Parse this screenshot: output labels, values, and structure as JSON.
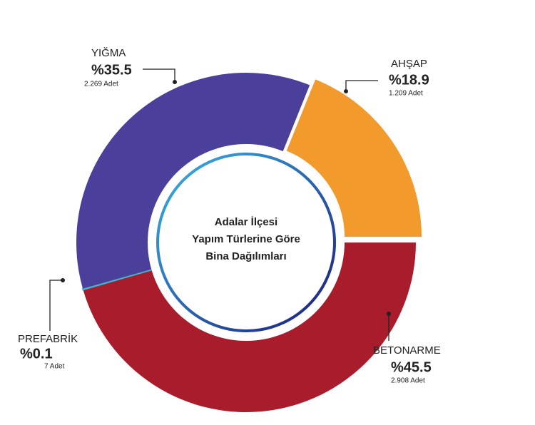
{
  "chart_data": {
    "type": "donut",
    "title": [
      "Adalar İlçesi",
      "Yapım Türlerine Göre",
      "Bina Dağılımları"
    ],
    "categories": [
      "AHŞAP",
      "BETONARME",
      "PREFABRİK",
      "YIĞMA"
    ],
    "values": [
      18.9,
      45.5,
      0.1,
      35.5
    ],
    "value_labels": [
      "%18.9",
      "%45.5",
      "%0.1",
      "%35.5"
    ],
    "count_labels": [
      "1.209 Adet",
      "2.908 Adet",
      "7 Adet",
      "2.269 Adet"
    ],
    "colors": [
      "#f39a2c",
      "#a81c2c",
      "#3fb5c8",
      "#4a3f9a"
    ]
  }
}
